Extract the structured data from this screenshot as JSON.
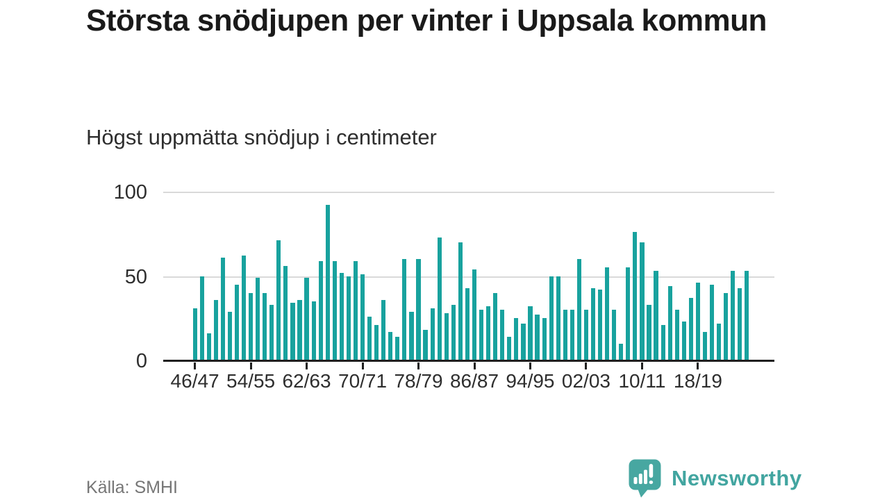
{
  "title": "Största snödjupen per vinter i Uppsala kommun",
  "subtitle": "Högst uppmätta snödjup i centimeter",
  "source": "Källa: SMHI",
  "brand": {
    "name": "Newsworthy",
    "icon": "newsworthy-speech-bubble-bar-chart-icon",
    "color": "#42a5a0"
  },
  "chart_data": {
    "type": "bar",
    "title": "Största snödjupen per vinter i Uppsala kommun",
    "subtitle": "Högst uppmätta snödjup i centimeter",
    "unit": "cm",
    "bar_color": "#18a29e",
    "grid": "horizontal",
    "ylim": [
      0,
      100
    ],
    "yticks": [
      0,
      50,
      100
    ],
    "xtick_every": 8,
    "xtick_labels": [
      "46/47",
      "54/55",
      "62/63",
      "70/71",
      "78/79",
      "86/87",
      "94/95",
      "02/03",
      "10/11",
      "18/19"
    ],
    "categories": [
      "1946/47",
      "1947/48",
      "1948/49",
      "1949/50",
      "1950/51",
      "1951/52",
      "1952/53",
      "1953/54",
      "1954/55",
      "1955/56",
      "1956/57",
      "1957/58",
      "1958/59",
      "1959/60",
      "1960/61",
      "1961/62",
      "1962/63",
      "1963/64",
      "1964/65",
      "1965/66",
      "1966/67",
      "1967/68",
      "1968/69",
      "1969/70",
      "1970/71",
      "1971/72",
      "1972/73",
      "1973/74",
      "1974/75",
      "1975/76",
      "1976/77",
      "1977/78",
      "1978/79",
      "1979/80",
      "1980/81",
      "1981/82",
      "1982/83",
      "1983/84",
      "1984/85",
      "1985/86",
      "1986/87",
      "1987/88",
      "1988/89",
      "1989/90",
      "1990/91",
      "1991/92",
      "1992/93",
      "1993/94",
      "1994/95",
      "1995/96",
      "1996/97",
      "1997/98",
      "1998/99",
      "1999/00",
      "2000/01",
      "2001/02",
      "2002/03",
      "2003/04",
      "2004/05",
      "2005/06",
      "2006/07",
      "2007/08",
      "2008/09",
      "2009/10",
      "2010/11",
      "2011/12",
      "2012/13",
      "2013/14",
      "2014/15",
      "2015/16",
      "2016/17",
      "2017/18",
      "2018/19",
      "2019/20",
      "2020/21",
      "2021/22",
      "2022/23",
      "2023/24",
      "2024/25",
      "2025/26"
    ],
    "values": [
      31,
      50,
      16,
      36,
      61,
      29,
      45,
      62,
      40,
      49,
      40,
      33,
      71,
      56,
      34,
      36,
      49,
      35,
      59,
      92,
      59,
      52,
      50,
      59,
      51,
      26,
      21,
      36,
      17,
      14,
      60,
      29,
      60,
      18,
      31,
      73,
      28,
      33,
      70,
      43,
      54,
      30,
      32,
      40,
      30,
      14,
      25,
      22,
      32,
      27,
      25,
      50,
      50,
      30,
      30,
      60,
      30,
      43,
      42,
      55,
      30,
      10,
      55,
      76,
      70,
      33,
      53,
      21,
      44,
      30,
      23,
      37,
      46,
      17,
      45,
      22,
      40,
      53,
      43,
      53
    ]
  }
}
